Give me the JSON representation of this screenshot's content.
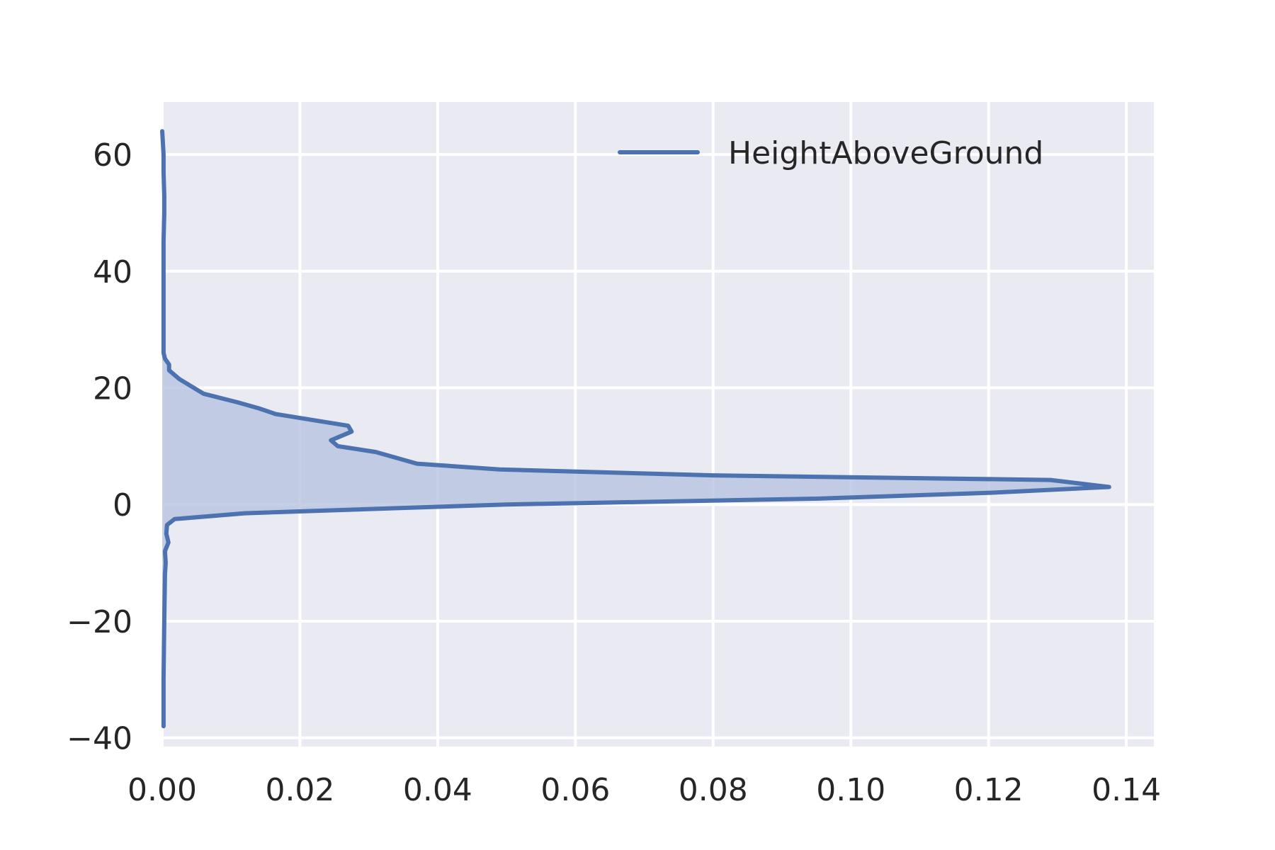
{
  "chart_data": {
    "type": "area",
    "orientation": "horizontal",
    "xlim": [
      0.0,
      0.144
    ],
    "ylim": [
      -41.5,
      69
    ],
    "x_ticks": [
      0.0,
      0.02,
      0.04,
      0.06,
      0.08,
      0.1,
      0.12,
      0.14
    ],
    "x_tick_labels": [
      "0.00",
      "0.02",
      "0.04",
      "0.06",
      "0.08",
      "0.10",
      "0.12",
      "0.14"
    ],
    "y_ticks": [
      -40,
      -20,
      0,
      20,
      40,
      60
    ],
    "y_tick_labels": [
      "−40",
      "−20",
      "0",
      "20",
      "40",
      "60"
    ],
    "grid": true,
    "legend": {
      "position": "upper right",
      "entries": [
        "HeightAboveGround"
      ]
    },
    "series": [
      {
        "name": "HeightAboveGround",
        "color": "#4c72b0",
        "fill_color": "#b6c3df",
        "density": [
          0.0,
          0.0002,
          0.0002,
          0.0003,
          0.0003,
          0.0002,
          0.0002,
          0.0002,
          0.0002,
          0.0002,
          0.0004,
          0.001,
          0.001,
          0.0025,
          0.006,
          0.011,
          0.014,
          0.0165,
          0.027,
          0.0275,
          0.0245,
          0.0255,
          0.031,
          0.034,
          0.037,
          0.049,
          0.08,
          0.129,
          0.1375,
          0.12,
          0.095,
          0.05,
          0.012,
          0.0018,
          0.0007,
          0.0006,
          0.0009,
          0.0004,
          0.0005,
          0.0004,
          0.0003,
          0.0002,
          0.0002
        ],
        "height": [
          64,
          60,
          57,
          53,
          50,
          45,
          40,
          35,
          30,
          26,
          25,
          24,
          23,
          21.5,
          19,
          17.5,
          16.5,
          15.5,
          13.5,
          12.5,
          11,
          10,
          9,
          8,
          7,
          6,
          5,
          4.2,
          3,
          2,
          1,
          0,
          -1.5,
          -2.5,
          -3.5,
          -5,
          -6.5,
          -8,
          -10,
          -12,
          -20,
          -30,
          -38
        ]
      }
    ]
  }
}
